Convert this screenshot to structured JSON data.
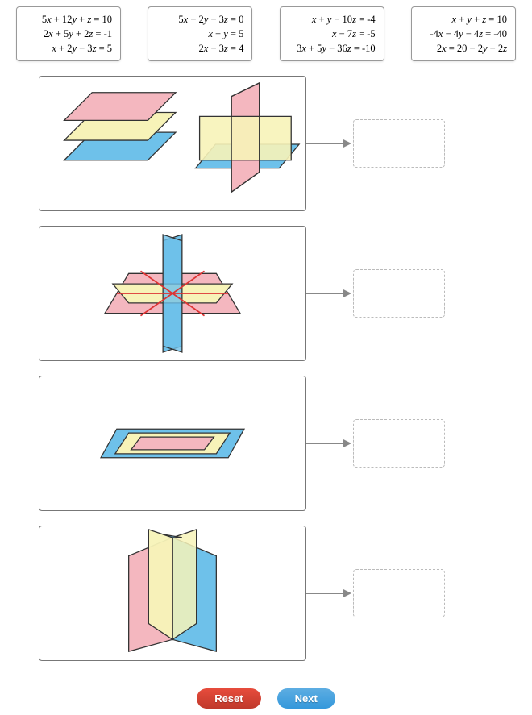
{
  "tiles": [
    {
      "l1": "5x + 12y + z = 10",
      "l2": "2x + 5y + 2z = -1",
      "l3": "x + 2y − 3z =  5"
    },
    {
      "l1": "5x − 2y − 3z = 0",
      "l2": "x + y = 5",
      "l3": "2x − 3z = 4"
    },
    {
      "l1": "x + y − 10z =  -4",
      "l2": "x − 7z =  -5",
      "l3": "3x + 5y − 36z = -10"
    },
    {
      "l1": "x + y + z = 10",
      "l2": "-4x − 4y − 4z = -40",
      "l3": "2x = 20 − 2y − 2z"
    }
  ],
  "buttons": {
    "reset": "Reset",
    "next": "Next"
  },
  "colors": {
    "pink": "#f4b7bf",
    "pinkStroke": "#d88",
    "yellow": "#f7f3b8",
    "yellowStroke": "#ccc06a",
    "blue": "#6ec1ea",
    "blueStroke": "#3a8fc0",
    "outline": "#333",
    "red": "#d33"
  }
}
